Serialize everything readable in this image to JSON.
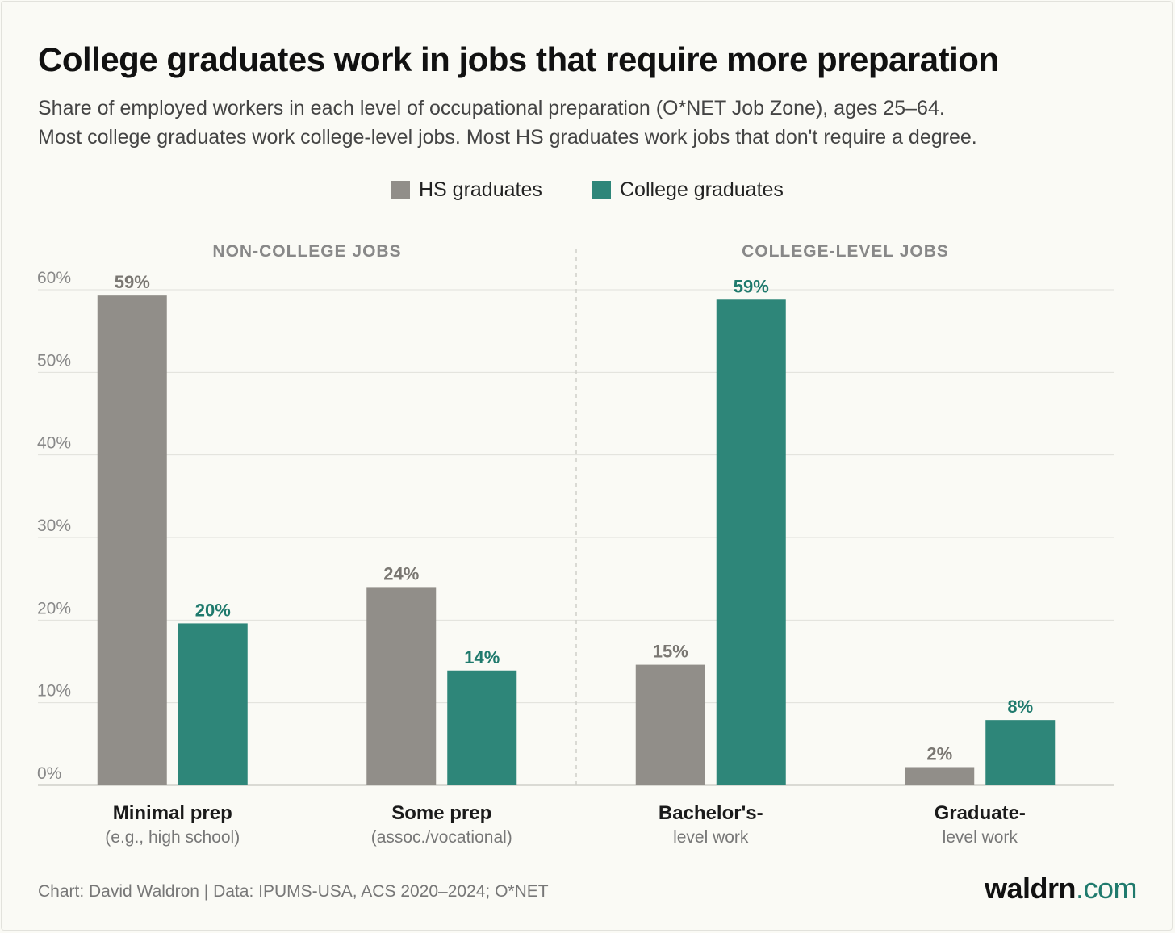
{
  "title": "College graduates work in jobs that require more preparation",
  "subtitle": [
    "Share of employed workers in each level of occupational preparation (O*NET Job Zone), ages 25–64.",
    "Most college graduates work college-level jobs. Most HS graduates work jobs that don't require a degree."
  ],
  "colors": {
    "hs": "#918e89",
    "college": "#2e8679",
    "background": "#fafaf5"
  },
  "footer": {
    "source": "Chart: David Waldron | Data: IPUMS-USA, ACS 2020–2024; O*NET",
    "brand_name": "waldrn",
    "brand_tld": ".com"
  },
  "chart_data": {
    "type": "bar",
    "title": "College graduates work in jobs that require more preparation",
    "xlabel": "",
    "ylabel": "",
    "ylim": [
      0,
      60
    ],
    "yticks": [
      0,
      10,
      20,
      30,
      40,
      50,
      60
    ],
    "ytick_labels": [
      "0%",
      "10%",
      "20%",
      "30%",
      "40%",
      "50%",
      "60%"
    ],
    "grid": true,
    "legend_position": "top-center",
    "categories": [
      {
        "main": "Minimal prep",
        "sub": "(e.g., high school)"
      },
      {
        "main": "Some prep",
        "sub": "(assoc./vocational)"
      },
      {
        "main": "Bachelor's-",
        "sub": "level work"
      },
      {
        "main": "Graduate-",
        "sub": "level work"
      }
    ],
    "groups": [
      {
        "label": "NON-COLLEGE JOBS",
        "categories": [
          0,
          1
        ]
      },
      {
        "label": "COLLEGE-LEVEL JOBS",
        "categories": [
          2,
          3
        ]
      }
    ],
    "series": [
      {
        "name": "HS graduates",
        "values": [
          59.3,
          24.0,
          14.6,
          2.2
        ],
        "labels": [
          "59%",
          "24%",
          "15%",
          "2%"
        ]
      },
      {
        "name": "College graduates",
        "values": [
          19.6,
          13.9,
          58.8,
          7.9
        ],
        "labels": [
          "20%",
          "14%",
          "59%",
          "8%"
        ]
      }
    ]
  }
}
